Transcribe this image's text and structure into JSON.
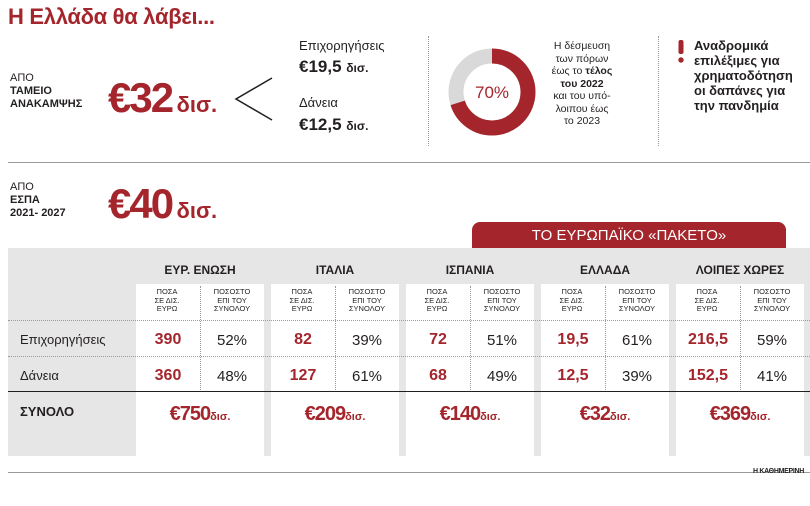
{
  "title": "Η Ελλάδα θα λάβει...",
  "recovery": {
    "label_prefix": "ΑΠΟ",
    "label_main_1": "ΤΑΜΕΙΟ",
    "label_main_2": "ΑΝΑΚΑΜΨΗΣ",
    "amount": "€32",
    "unit": "δισ.",
    "grants_label": "Επιχορηγήσεις",
    "grants_amount": "€19,5",
    "grants_unit": "δισ.",
    "loans_label": "Δάνεια",
    "loans_amount": "€12,5",
    "loans_unit": "δισ."
  },
  "donut": {
    "value": 70,
    "label": "70%",
    "text_1": "Η δέσμευση",
    "text_2": "των πόρων",
    "text_3a": "έως το ",
    "text_3b": "τέλος",
    "text_4": "του 2022",
    "text_5": "και του υπό-",
    "text_6": "λοιπου έως",
    "text_7": "το 2023",
    "color": "#a4262c",
    "track": "#d9d9d9"
  },
  "note": {
    "line_1": "Αναδρομικά",
    "line_2": "επιλέξιμες για",
    "line_3": "χρηματοδότηση",
    "line_4": "οι δαπάνες για",
    "line_5": "την πανδημία"
  },
  "espa": {
    "label_prefix": "ΑΠΟ",
    "label_main_1": "ΕΣΠΑ",
    "label_main_2": "2021- 2027",
    "amount": "€40",
    "unit": "δισ."
  },
  "package_title": "ΤΟ ΕΥΡΩΠΑΪΚΟ «ΠΑΚΕΤΟ»",
  "chart_data": {
    "type": "table",
    "col_header_amount": [
      "ΠΟΣΑ",
      "ΣΕ ΔΙΣ.",
      "ΕΥΡΩ"
    ],
    "col_header_share": [
      "ΠΟΣΟΣΤΟ",
      "ΕΠΙ ΤΟΥ",
      "ΣΥΝΟΛΟΥ"
    ],
    "row_labels": [
      "Επιχορηγήσεις",
      "Δάνεια"
    ],
    "total_label": "ΣΥΝΟΛΟ",
    "total_unit": "δισ.",
    "columns": [
      {
        "name": "ΕΥΡ. ΕΝΩΣΗ",
        "grants": "390",
        "grants_pct": "52%",
        "loans": "360",
        "loans_pct": "48%",
        "total": "€750"
      },
      {
        "name": "ΙΤΑΛΙΑ",
        "grants": "82",
        "grants_pct": "39%",
        "loans": "127",
        "loans_pct": "61%",
        "total": "€209"
      },
      {
        "name": "ΙΣΠΑΝΙΑ",
        "grants": "72",
        "grants_pct": "51%",
        "loans": "68",
        "loans_pct": "49%",
        "total": "€140"
      },
      {
        "name": "ΕΛΛΑΔΑ",
        "grants": "19,5",
        "grants_pct": "61%",
        "loans": "12,5",
        "loans_pct": "39%",
        "total": "€32"
      },
      {
        "name": "ΛΟΙΠΕΣ ΧΩΡΕΣ",
        "grants": "216,5",
        "grants_pct": "59%",
        "loans": "152,5",
        "loans_pct": "41%",
        "total": "€369"
      }
    ]
  },
  "credit": "Η ΚΑΘΗΜΕΡΙΝΗ"
}
